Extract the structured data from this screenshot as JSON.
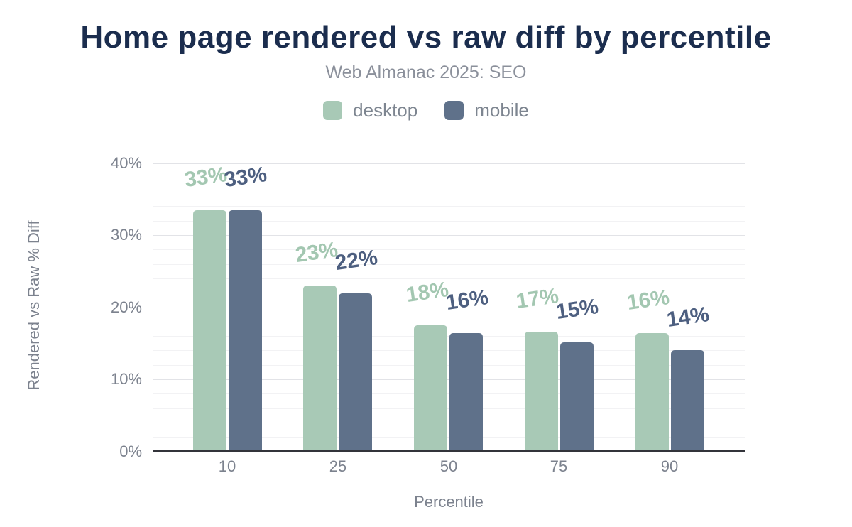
{
  "header": {
    "title": "Home page rendered vs raw diff by percentile",
    "subtitle": "Web Almanac 2025: SEO"
  },
  "legend": {
    "items": [
      {
        "label": "desktop",
        "color": "#a8c9b6"
      },
      {
        "label": "mobile",
        "color": "#5f718a"
      }
    ]
  },
  "colors": {
    "title": "#1b2d4e",
    "subtitle": "#8b909b",
    "axis_text": "#7c828e",
    "axis_line": "#33343a",
    "gridline_major": "#e2e3e7",
    "gridline_minor": "#f2f2f4",
    "desktop_bar": "#a8c9b6",
    "mobile_bar": "#5f718a",
    "desktop_label": "#a3c7b1",
    "mobile_label": "#4d5f80"
  },
  "chart_data": {
    "type": "bar",
    "title": "Home page rendered vs raw diff by percentile",
    "subtitle": "Web Almanac 2025: SEO",
    "categories": [
      "10",
      "25",
      "50",
      "75",
      "90"
    ],
    "series": [
      {
        "name": "desktop",
        "color": "#a8c9b6",
        "label_color": "#a3c7b1",
        "values": [
          33,
          23,
          18,
          17,
          16
        ],
        "data_labels": [
          "33%",
          "23%",
          "18%",
          "17%",
          "16%"
        ],
        "values_precise": [
          33.4,
          23.0,
          17.5,
          16.6,
          16.4
        ]
      },
      {
        "name": "mobile",
        "color": "#5f718a",
        "label_color": "#4d5f80",
        "values": [
          33,
          22,
          16,
          15,
          14
        ],
        "data_labels": [
          "33%",
          "22%",
          "16%",
          "15%",
          "14%"
        ],
        "values_precise": [
          33.4,
          21.9,
          16.4,
          15.1,
          14.0
        ]
      }
    ],
    "xlabel": "Percentile",
    "ylabel": "Rendered vs Raw % Diff",
    "ylim": [
      0,
      40
    ],
    "yticks": [
      "0%",
      "10%",
      "20%",
      "30%",
      "40%"
    ],
    "ytick_values": [
      0,
      10,
      20,
      30,
      40
    ],
    "grid": {
      "major_every": 10,
      "minor_every": 2,
      "vertical": false
    },
    "legend_position": "top-center"
  }
}
